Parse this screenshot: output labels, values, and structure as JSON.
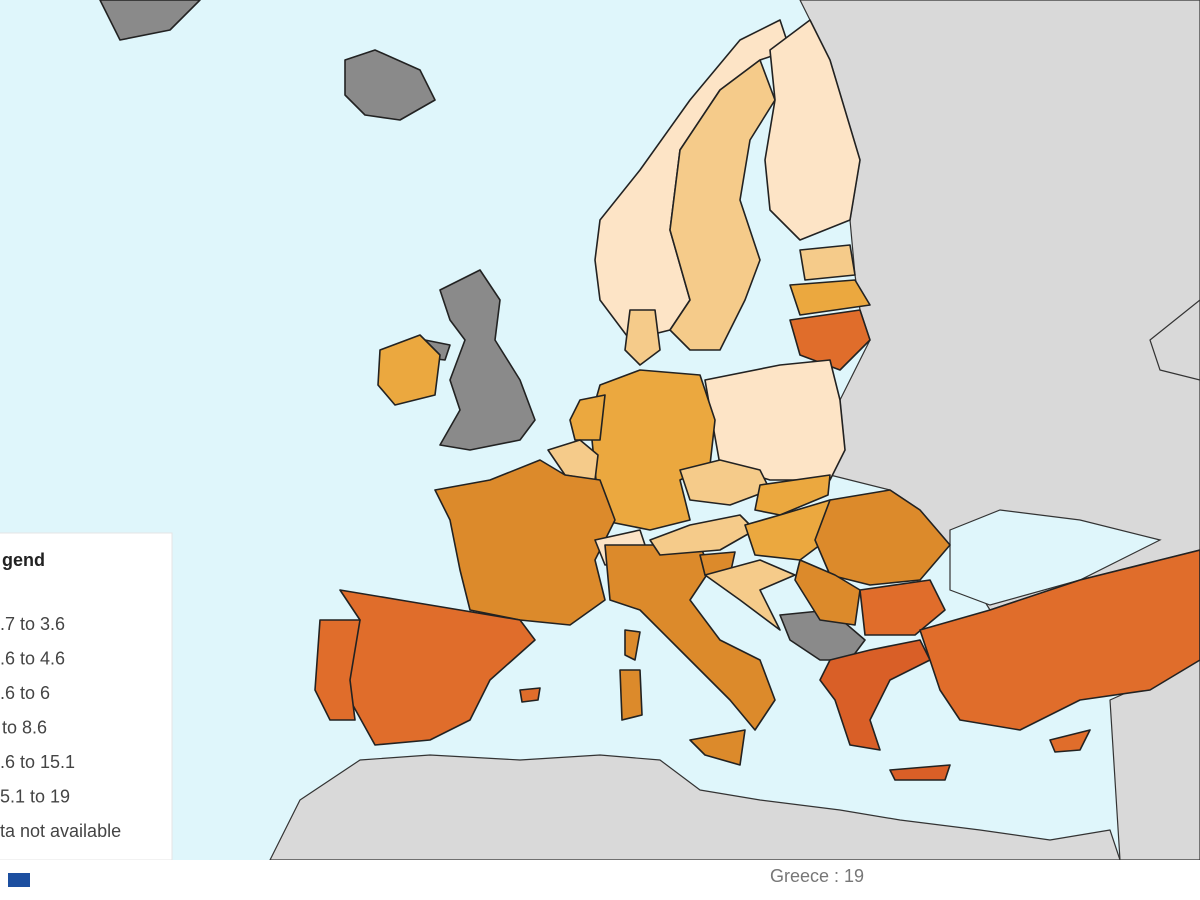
{
  "map": {
    "class_colors": [
      "#fde4c6",
      "#f5cb8a",
      "#eba83f",
      "#dc8a2b",
      "#e06d2b",
      "#d95f27"
    ],
    "no_data_color": "#8a8a8a",
    "other_land_color": "#d9d9d9",
    "sea_color": "#dff6fb"
  },
  "legend": {
    "title": "gend",
    "items": [
      ".7 to 3.6",
      ".6 to 4.6",
      ".6 to 6",
      "to 8.6",
      ".6 to 15.1",
      "5.1 to 19",
      "ta not available"
    ]
  },
  "status": "Greece : 19"
}
